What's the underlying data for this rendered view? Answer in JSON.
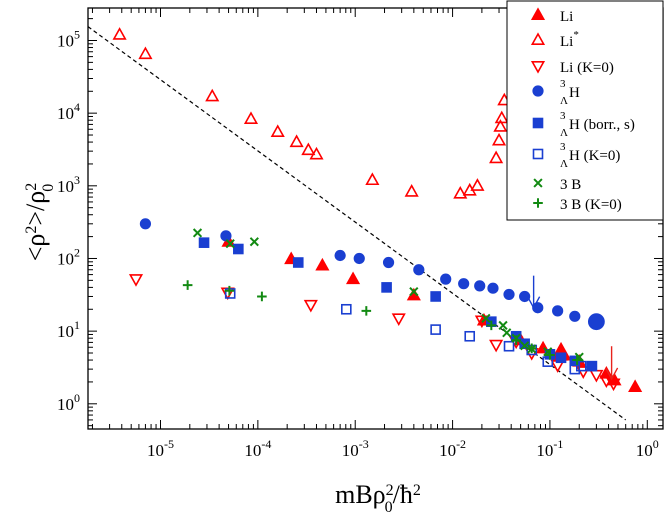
{
  "chart_data": {
    "type": "scatter",
    "title": "",
    "xlabel": "mBρ₀²/ħ²",
    "ylabel": "<ρ²>/ρ₀²",
    "xscale": "log",
    "yscale": "log",
    "xlim": [
      1.8e-06,
      1.45
    ],
    "ylim": [
      0.45,
      280000.0
    ],
    "x_ticks": [
      {
        "value": 1e-05,
        "mant": "10",
        "exp": "-5"
      },
      {
        "value": 0.0001,
        "mant": "10",
        "exp": "-4"
      },
      {
        "value": 0.001,
        "mant": "10",
        "exp": "-3"
      },
      {
        "value": 0.01,
        "mant": "10",
        "exp": "-2"
      },
      {
        "value": 0.1,
        "mant": "10",
        "exp": "-1"
      },
      {
        "value": 1,
        "mant": "10",
        "exp": "0"
      }
    ],
    "y_ticks": [
      {
        "value": 1,
        "mant": "10",
        "exp": "0"
      },
      {
        "value": 10,
        "mant": "10",
        "exp": "1"
      },
      {
        "value": 100,
        "mant": "10",
        "exp": "2"
      },
      {
        "value": 1000,
        "mant": "10",
        "exp": "3"
      },
      {
        "value": 10000,
        "mant": "10",
        "exp": "4"
      },
      {
        "value": 100000,
        "mant": "10",
        "exp": "5"
      }
    ],
    "legend_position": "top-right",
    "reference_line": {
      "style": "dashed",
      "color": "#000000",
      "x": [
        1.8e-06,
        0.6
      ],
      "y": [
        155000.0,
        0.6
      ]
    },
    "arrows": [
      {
        "color": "#1a3fd1",
        "x": 0.068,
        "y_from": 58,
        "y_to": 21
      },
      {
        "color": "#e8231c",
        "x": 0.43,
        "y_from": 6.2,
        "y_to": 2.2
      }
    ],
    "series": [
      {
        "name": "Li",
        "legend": [
          "Li",
          "",
          ""
        ],
        "marker": "triangle-up",
        "filled": true,
        "color": "#ff0000",
        "points": [
          [
            5e-05,
            170
          ],
          [
            0.00022,
            98
          ],
          [
            0.00046,
            80
          ],
          [
            0.00095,
            52
          ],
          [
            0.004,
            31
          ],
          [
            0.021,
            14
          ],
          [
            0.05,
            7.5
          ],
          [
            0.085,
            5.8
          ],
          [
            0.13,
            4.6
          ],
          [
            0.2,
            3.8
          ],
          [
            0.38,
            2.6
          ],
          [
            0.46,
            2.1
          ],
          [
            0.75,
            1.7
          ]
        ],
        "large": [
          [
            0.13,
            5
          ]
        ]
      },
      {
        "name": "Li*",
        "legend": [
          "Li",
          "*",
          ""
        ],
        "marker": "triangle-up",
        "filled": false,
        "color": "#ff0000",
        "points": [
          [
            3.8e-06,
            120000.0
          ],
          [
            7e-06,
            65000.0
          ],
          [
            3.4e-05,
            17000.0
          ],
          [
            8.5e-05,
            8300.0
          ],
          [
            0.00016,
            5500.0
          ],
          [
            0.00025,
            4000.0
          ],
          [
            0.00033,
            3100.0
          ],
          [
            0.0004,
            2700.0
          ],
          [
            0.0015,
            1200.0
          ],
          [
            0.0038,
            830
          ],
          [
            0.012,
            780
          ],
          [
            0.015,
            860
          ],
          [
            0.018,
            1000.0
          ],
          [
            0.028,
            2400.0
          ],
          [
            0.03,
            4200.0
          ],
          [
            0.031,
            6500.0
          ],
          [
            0.032,
            8500.0
          ],
          [
            0.034,
            15000.0
          ]
        ]
      },
      {
        "name": "Li (K=0)",
        "legend": [
          "Li (K=0)",
          "",
          ""
        ],
        "marker": "triangle-down",
        "filled": false,
        "color": "#ff0000",
        "points": [
          [
            5.6e-06,
            52
          ],
          [
            4.9e-05,
            34
          ],
          [
            0.00035,
            23
          ],
          [
            0.0028,
            15
          ],
          [
            0.02,
            14
          ],
          [
            0.028,
            6.5
          ],
          [
            0.045,
            7.2
          ],
          [
            0.065,
            5
          ],
          [
            0.12,
            3.4
          ],
          [
            0.22,
            2.8
          ],
          [
            0.3,
            2.5
          ],
          [
            0.38,
            2.1
          ],
          [
            0.45,
            1.9
          ]
        ]
      },
      {
        "name": "3ΛH",
        "legend": [
          "",
          "3",
          "Λ",
          "H"
        ],
        "marker": "circle",
        "filled": true,
        "color": "#1a3fd1",
        "points": [
          [
            7e-06,
            300
          ],
          [
            4.7e-05,
            205
          ],
          [
            0.0007,
            110
          ],
          [
            0.0011,
            100
          ],
          [
            0.0022,
            88
          ],
          [
            0.0045,
            70
          ],
          [
            0.0085,
            52
          ],
          [
            0.013,
            45
          ],
          [
            0.019,
            42
          ],
          [
            0.026,
            39
          ],
          [
            0.038,
            32
          ],
          [
            0.055,
            30
          ],
          [
            0.075,
            21
          ],
          [
            0.12,
            19
          ],
          [
            0.18,
            16
          ],
          [
            0.3,
            13.5
          ]
        ],
        "large": [
          [
            0.3,
            13.5
          ]
        ]
      },
      {
        "name": "3ΛH (borr., s)",
        "legend": [
          "",
          "3",
          "Λ",
          "H (borr., s)"
        ],
        "marker": "square",
        "filled": true,
        "color": "#1a3fd1",
        "points": [
          [
            2.8e-05,
            165
          ],
          [
            6.3e-05,
            135
          ],
          [
            0.00026,
            88
          ],
          [
            0.0021,
            40
          ],
          [
            0.0067,
            30
          ],
          [
            0.025,
            13.5
          ],
          [
            0.045,
            8.5
          ],
          [
            0.055,
            6.7
          ],
          [
            0.1,
            4.8
          ],
          [
            0.13,
            4.3
          ],
          [
            0.18,
            3.9
          ],
          [
            0.27,
            3.3
          ]
        ]
      },
      {
        "name": "3ΛH (K=0)",
        "legend": [
          "",
          "3",
          "Λ",
          "H (K=0)"
        ],
        "marker": "square",
        "filled": false,
        "color": "#1a3fd1",
        "points": [
          [
            5.2e-05,
            33
          ],
          [
            0.00081,
            20
          ],
          [
            0.0067,
            10.5
          ],
          [
            0.015,
            8.5
          ],
          [
            0.038,
            6.2
          ],
          [
            0.065,
            5.5
          ],
          [
            0.095,
            3.8
          ],
          [
            0.18,
            3
          ],
          [
            0.21,
            3.3
          ]
        ]
      },
      {
        "name": "3 B",
        "legend": [
          "3 B",
          "",
          ""
        ],
        "marker": "x",
        "filled": false,
        "color": "#128a12",
        "points": [
          [
            2.4e-05,
            225
          ],
          [
            5.2e-05,
            160
          ],
          [
            9.2e-05,
            170
          ],
          [
            0.004,
            35
          ],
          [
            0.022,
            15
          ],
          [
            0.033,
            12
          ],
          [
            0.036,
            9.5
          ],
          [
            0.045,
            8
          ],
          [
            0.055,
            6.3
          ],
          [
            0.065,
            5.7
          ],
          [
            0.095,
            5.2
          ],
          [
            0.2,
            4.4
          ]
        ]
      },
      {
        "name": "3 B (K=0)",
        "legend": [
          "3 B (K=0)",
          "",
          ""
        ],
        "marker": "plus",
        "filled": false,
        "color": "#128a12",
        "points": [
          [
            1.9e-05,
            43
          ],
          [
            5.1e-05,
            36
          ],
          [
            0.00011,
            30
          ],
          [
            0.0013,
            19
          ],
          [
            0.025,
            12
          ],
          [
            0.045,
            7.5
          ],
          [
            0.065,
            5.8
          ],
          [
            0.1,
            4.7
          ],
          [
            0.19,
            4
          ]
        ]
      }
    ]
  }
}
